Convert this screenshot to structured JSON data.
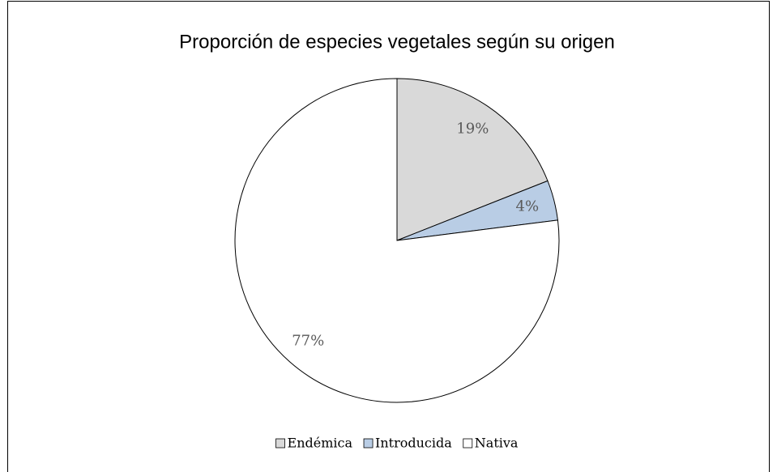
{
  "chart_data": {
    "type": "pie",
    "title": "Proporción de especies vegetales según su origen",
    "categories": [
      "Endémica",
      "Introducida",
      "Nativa"
    ],
    "values": [
      19,
      4,
      77
    ],
    "value_labels": [
      "19%",
      "4%",
      "77%"
    ],
    "colors": [
      "#d9d9d9",
      "#b9cde5",
      "#ffffff"
    ],
    "legend": "bottom"
  }
}
